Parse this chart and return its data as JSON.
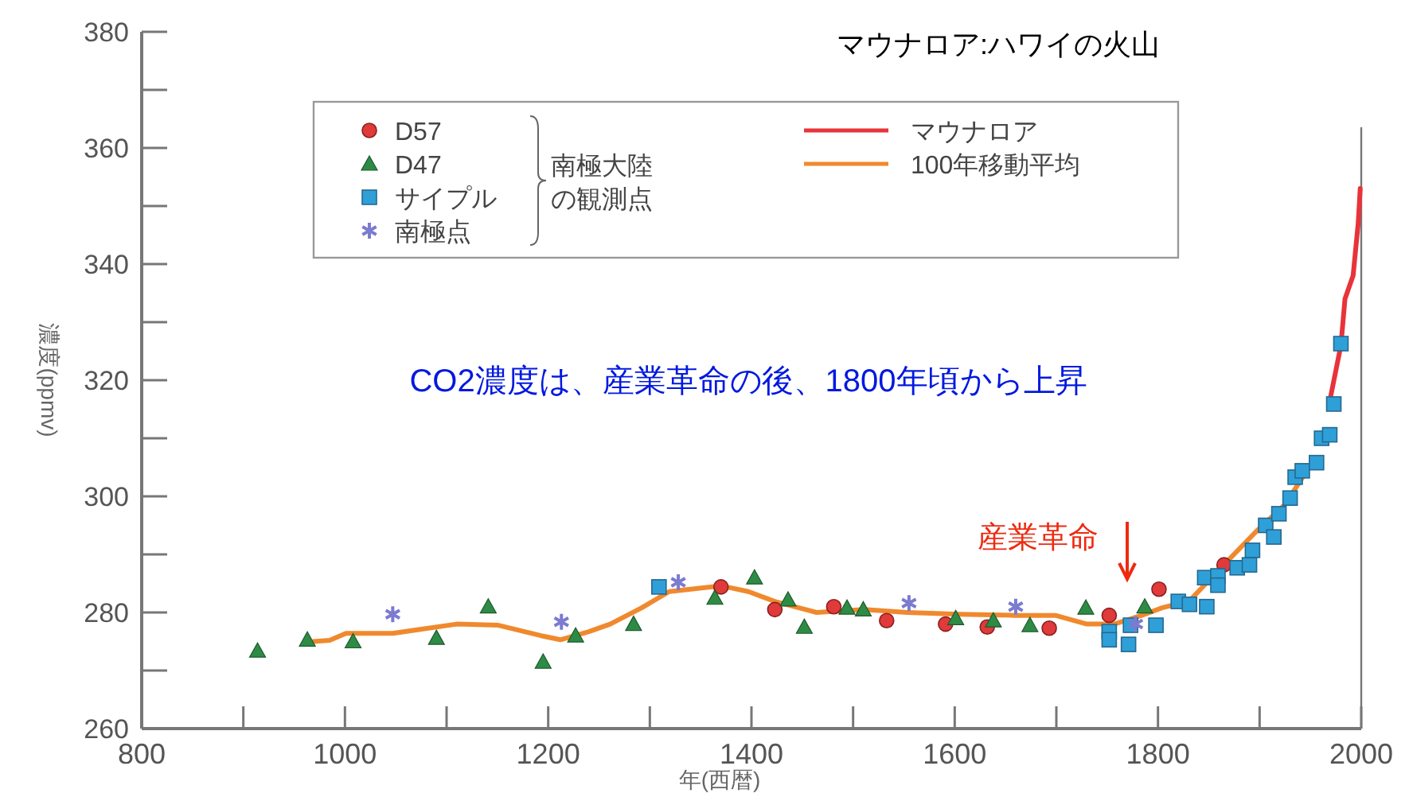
{
  "chart_data": {
    "type": "scatter",
    "xlabel": "年(西暦)",
    "ylabel": "濃度(ppmv)",
    "legend_title": "南極大陸の観測点",
    "legend": "top",
    "xlim": [
      800,
      2000
    ],
    "ylim": [
      260,
      380
    ],
    "xticks": [
      800,
      {
        "value": 900,
        "label": null
      },
      1000,
      {
        "value": 1100,
        "label": null
      },
      1200,
      {
        "value": 1300,
        "label": null
      },
      1400,
      {
        "value": 1500,
        "label": null
      },
      1600,
      {
        "value": 1700,
        "label": null
      },
      1800,
      {
        "value": 1900,
        "label": null
      },
      2000
    ],
    "yticks": [
      260,
      {
        "value": 270,
        "label": null
      },
      280,
      {
        "value": 290,
        "label": null
      },
      300,
      {
        "value": 310,
        "label": null
      },
      320,
      {
        "value": 330,
        "label": null
      },
      340,
      {
        "value": 350,
        "label": null
      },
      360,
      {
        "value": 370,
        "label": null
      },
      380
    ],
    "series": [
      {
        "name": "D57",
        "marker": "circle",
        "color": "#e03a3a",
        "x": [
          1370,
          1423,
          1481,
          1533,
          1591,
          1632,
          1693,
          1752,
          1801,
          1865
        ],
        "values": [
          284.4,
          280.5,
          281,
          278.6,
          278,
          277.5,
          277.3,
          279.5,
          284,
          288.2
        ]
      },
      {
        "name": "D47",
        "marker": "triangle",
        "color": "#2e8b45",
        "x": [
          914,
          963,
          1008,
          1090,
          1141,
          1195,
          1227,
          1284,
          1364,
          1403,
          1436,
          1452,
          1494,
          1510,
          1601,
          1638,
          1674,
          1729,
          1787
        ],
        "values": [
          273.4,
          275.3,
          275,
          275.6,
          281,
          271.5,
          276,
          278,
          282.5,
          286,
          282.2,
          277.5,
          280.8,
          280.5,
          279,
          278.6,
          277.8,
          280.8,
          281
        ]
      },
      {
        "name": "サイプル",
        "marker": "square",
        "color": "#2f9fd8",
        "x": [
          1309,
          1752,
          1752,
          1771,
          1773,
          1798,
          1820,
          1831,
          1848,
          1846,
          1859,
          1859,
          1878,
          1890,
          1893,
          1906,
          1914,
          1919,
          1930,
          1935,
          1942,
          1956,
          1961,
          1969,
          1973,
          1980
        ],
        "values": [
          284.4,
          276.7,
          275.3,
          274.5,
          277.8,
          277.8,
          281.9,
          281.4,
          281,
          286,
          286.3,
          284.7,
          287.7,
          288.2,
          290.7,
          295,
          293,
          297,
          299.7,
          303.3,
          304.4,
          305.8,
          310,
          310.6,
          315.9,
          326.3
        ]
      },
      {
        "name": "南極点",
        "marker": "cross",
        "color": "#7b7bd0",
        "x": [
          1047,
          1213,
          1328,
          1555,
          1660,
          1778
        ],
        "values": [
          279.7,
          278.4,
          285.2,
          281.6,
          281,
          278
        ]
      },
      {
        "name": "マウナロア",
        "type": "line",
        "marker": "none",
        "line_style": "solid",
        "color": "#e8333a",
        "x": [
          1969,
          1980,
          1984,
          1992,
          1997,
          1999
        ],
        "values": [
          316.4,
          326,
          334,
          338,
          347,
          353
        ]
      },
      {
        "name": "100年移動平均",
        "type": "line",
        "marker": "none",
        "line_style": "solid",
        "color": "#f0892e",
        "x": [
          969,
          985,
          1001,
          1047,
          1110,
          1151,
          1193,
          1212,
          1240,
          1261,
          1292,
          1319,
          1370,
          1397,
          1423,
          1464,
          1511,
          1553,
          1605,
          1658,
          1699,
          1730,
          1757,
          1784,
          1804,
          1831,
          1862,
          1898,
          1925,
          1945
        ],
        "values": [
          275,
          275.2,
          276.4,
          276.4,
          278,
          277.8,
          276,
          275.3,
          276.7,
          278,
          280.8,
          283.6,
          284.6,
          283.6,
          281.9,
          280,
          280.5,
          280,
          279.7,
          279.5,
          279.5,
          278,
          278,
          279.5,
          280.8,
          282,
          287.7,
          294.2,
          298.6,
          304
        ]
      }
    ],
    "annotations": [
      "マウナロア:ハワイの火山",
      "CO2濃度は、産業革命の後、1800年頃から上昇",
      "産業革命"
    ]
  }
}
